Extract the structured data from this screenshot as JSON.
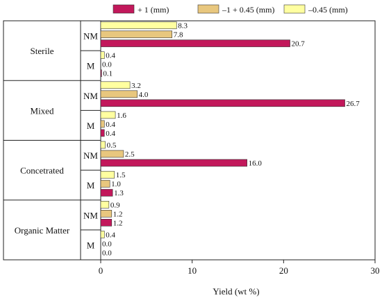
{
  "chart_data": {
    "type": "bar",
    "orientation": "horizontal",
    "xlabel": "Yield (wt %)",
    "xlim": [
      0,
      30
    ],
    "xticks": [
      0,
      10,
      20,
      30
    ],
    "grid": false,
    "legend_position": "top",
    "groups": [
      {
        "name": "Sterile",
        "subgroups": [
          {
            "name": "NM",
            "values": [
              20.7,
              7.8,
              8.3
            ],
            "labels": [
              "20.7",
              "7.8",
              "8.3"
            ]
          },
          {
            "name": "M",
            "values": [
              0.1,
              0.0,
              0.4
            ],
            "labels": [
              "0.1",
              "0.0",
              "0.4"
            ]
          }
        ]
      },
      {
        "name": "Mixed",
        "subgroups": [
          {
            "name": "NM",
            "values": [
              26.7,
              4.0,
              3.2
            ],
            "labels": [
              "26.7",
              "4.0",
              "3.2"
            ]
          },
          {
            "name": "M",
            "values": [
              0.4,
              0.4,
              1.6
            ],
            "labels": [
              "0.4",
              "0.4",
              "1.6"
            ]
          }
        ]
      },
      {
        "name": "Concetrated",
        "subgroups": [
          {
            "name": "NM",
            "values": [
              16.0,
              2.5,
              0.5
            ],
            "labels": [
              "16.0",
              "2.5",
              "0.5"
            ]
          },
          {
            "name": "M",
            "values": [
              1.3,
              1.0,
              1.5
            ],
            "labels": [
              "1.3",
              "1.0",
              "1.5"
            ]
          }
        ]
      },
      {
        "name": "Organic Matter",
        "subgroups": [
          {
            "name": "NM",
            "values": [
              1.2,
              1.2,
              0.9
            ],
            "labels": [
              "1.2",
              "1.2",
              "0.9"
            ]
          },
          {
            "name": "M",
            "values": [
              0.0,
              0.0,
              0.4
            ],
            "labels": [
              "0.0",
              "0.0",
              "0.4"
            ]
          }
        ]
      }
    ],
    "series": [
      {
        "name": "+ 1 (mm)",
        "color": "#C2185B"
      },
      {
        "name": "–1  + 0.45 (mm)",
        "color": "#E8C77E"
      },
      {
        "name": "–0.45 (mm)",
        "color": "#FFFFA0"
      }
    ]
  }
}
